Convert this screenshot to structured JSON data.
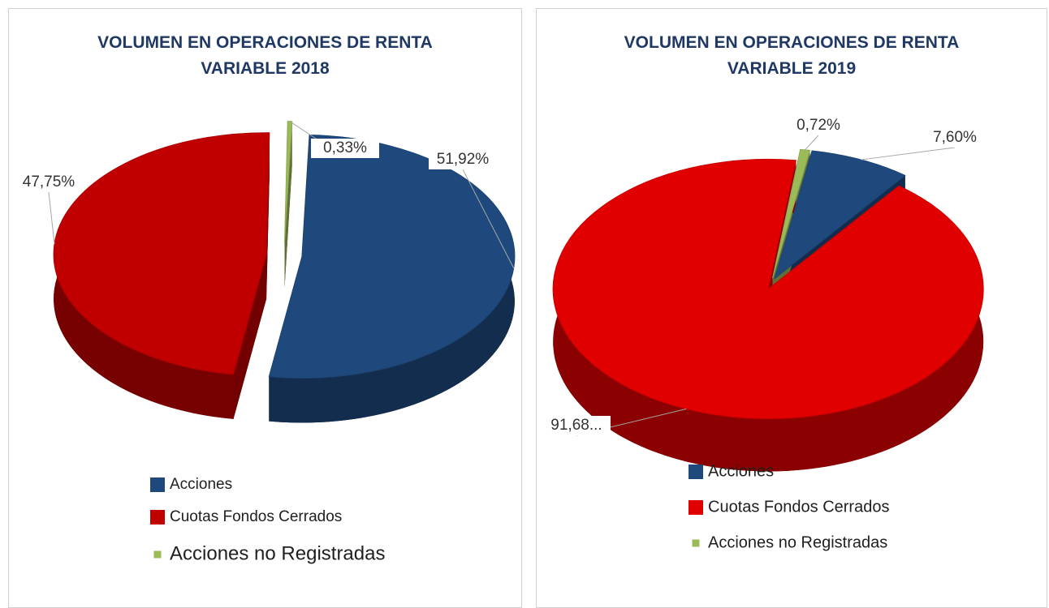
{
  "chart_data": [
    {
      "type": "pie3d",
      "title": "VOLUMEN EN OPERACIONES DE RENTA VARIABLE 2018",
      "categories": [
        "Acciones",
        "Cuotas Fondos Cerrados",
        "Acciones no Registradas"
      ],
      "values": [
        51.92,
        47.75,
        0.33
      ],
      "value_labels": [
        "51,92%",
        "47,75%",
        "0,33%"
      ],
      "colors": [
        "#1f497d",
        "#c00000",
        "#9bbb59"
      ]
    },
    {
      "type": "pie3d",
      "title": "VOLUMEN EN OPERACIONES DE RENTA VARIABLE 2019",
      "categories": [
        "Acciones",
        "Cuotas Fondos Cerrados",
        "Acciones no Registradas"
      ],
      "values": [
        7.6,
        91.68,
        0.72
      ],
      "value_labels": [
        "7,60%",
        "91,68...",
        "0,72%"
      ],
      "colors": [
        "#1f497d",
        "#e00000",
        "#9bbb59"
      ]
    }
  ]
}
